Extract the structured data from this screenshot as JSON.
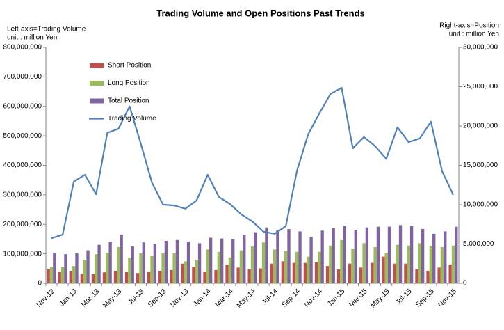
{
  "chart_data": {
    "type": "combo",
    "title": "Trading Volume and Open Positions Past Trends",
    "annotations": [
      "Left-axis=Trading Volume",
      "unit : million Yen",
      "Right-axis=Position",
      "unit : million Yen"
    ],
    "categories": [
      "Nov-12",
      null,
      "Jan-13",
      null,
      "Mar-13",
      null,
      "May-13",
      null,
      "Jul-13",
      null,
      "Sep-13",
      null,
      "Nov-13",
      null,
      "Jan-14",
      null,
      "Mar-14",
      null,
      "May-14",
      null,
      "Jul-14",
      null,
      "Sep-14",
      null,
      "Nov-14",
      null,
      "Jan-15",
      null,
      "Mar-15",
      null,
      "May-15",
      null,
      "Jul-15",
      null,
      "Sep-15",
      null,
      "Nov-15"
    ],
    "series": [
      {
        "name": "Short Position",
        "type": "bar",
        "axis": "y2",
        "color": "#c0504d",
        "values": [
          1800000,
          1500000,
          1600000,
          1200000,
          1200000,
          1400000,
          1600000,
          1500000,
          1300000,
          1500000,
          1600000,
          1700000,
          2500000,
          2100000,
          1500000,
          1700000,
          2300000,
          2000000,
          1800000,
          1900000,
          2500000,
          2800000,
          2600000,
          2600000,
          2700000,
          2200000,
          1800000,
          2500000,
          2000000,
          2600000,
          3400000,
          2500000,
          2500000,
          1800000,
          1600000,
          2000000,
          2400000
        ]
      },
      {
        "name": "Long Position",
        "type": "bar",
        "axis": "y2",
        "color": "#9bbb59",
        "values": [
          2100000,
          2100000,
          2200000,
          3000000,
          3700000,
          3900000,
          4600000,
          3200000,
          3800000,
          3500000,
          3800000,
          3800000,
          2800000,
          3000000,
          4300000,
          4000000,
          3300000,
          4200000,
          4700000,
          5200000,
          4300000,
          4100000,
          4000000,
          3400000,
          4000000,
          4800000,
          5500000,
          4400000,
          5100000,
          4600000,
          3800000,
          4900000,
          4800000,
          5100000,
          4700000,
          4600000,
          4800000
        ]
      },
      {
        "name": "Total Position",
        "type": "bar",
        "axis": "y2",
        "color": "#8064a2",
        "values": [
          3900000,
          3700000,
          3800000,
          4200000,
          4900000,
          5300000,
          6200000,
          4700000,
          5200000,
          5000000,
          5400000,
          5500000,
          5300000,
          5100000,
          5800000,
          5700000,
          5600000,
          6200000,
          6500000,
          7100000,
          6800000,
          6900000,
          6600000,
          5900000,
          6700000,
          7000000,
          7300000,
          6800000,
          7100000,
          7200000,
          7200000,
          7400000,
          7300000,
          6900000,
          6300000,
          6600000,
          7200000
        ]
      },
      {
        "name": "Trading Volume",
        "type": "line",
        "axis": "y",
        "color": "#4f81bd",
        "values": [
          153000000,
          165000000,
          345000000,
          368000000,
          302000000,
          510000000,
          524000000,
          600000000,
          474000000,
          342000000,
          267000000,
          264000000,
          253000000,
          281000000,
          368000000,
          293000000,
          269000000,
          234000000,
          210000000,
          175000000,
          168000000,
          194000000,
          382000000,
          505000000,
          576000000,
          642000000,
          663000000,
          458000000,
          496000000,
          465000000,
          422000000,
          529000000,
          479000000,
          491000000,
          548000000,
          380000000,
          300000000
        ]
      }
    ],
    "ylim": [
      0,
      800000000
    ],
    "yticks": [
      0,
      {
        "value": 100000000,
        "label": "100,000,000"
      },
      {
        "value": 200000000,
        "label": "200,000,000"
      },
      {
        "value": 300000000,
        "label": "300,000,000"
      },
      {
        "value": 400000000,
        "label": "400,000,000"
      },
      {
        "value": 500000000,
        "label": "500,000,000"
      },
      {
        "value": 600000000,
        "label": "600,000,000"
      },
      {
        "value": 700000000,
        "label": "700,000,000"
      },
      {
        "value": 800000000,
        "label": "800,000,000"
      }
    ],
    "y2lim": [
      0,
      30000000
    ],
    "y2ticks": [
      0,
      {
        "value": 5000000,
        "label": "5,000,000"
      },
      {
        "value": 10000000,
        "label": "10,000,000"
      },
      {
        "value": 15000000,
        "label": "15,000,000"
      },
      {
        "value": 20000000,
        "label": "20,000,000"
      },
      {
        "value": 25000000,
        "label": "25,000,000"
      },
      {
        "value": 30000000,
        "label": "30,000,000"
      }
    ],
    "grid": false,
    "legend": "upper left"
  }
}
